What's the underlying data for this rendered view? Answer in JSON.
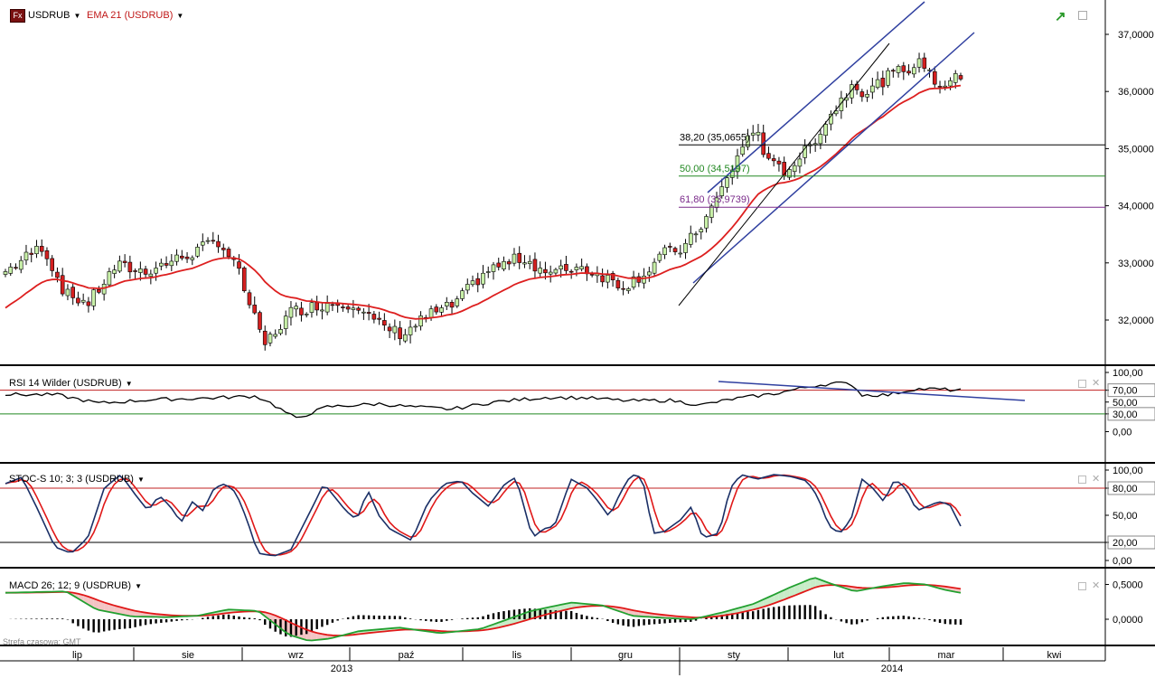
{
  "colors": {
    "bull": "#c8f0a8",
    "bear": "#d42020",
    "ema": "#dd1f1f",
    "channel": "#3040a0",
    "fib382": "#000000",
    "fib500": "#228822",
    "fib618": "#7a2a8a",
    "rsi": "#000000",
    "stoch_k": "#1a2f66",
    "stoch_d": "#e01818",
    "macd_line": "#22a030",
    "macd_signal": "#e01818",
    "level_red": "#c02020",
    "level_green": "#228822"
  },
  "main_panel": {
    "symbol": "USDRUB",
    "badge": "Fx",
    "indicator": "EMA 21 (USDRUB)",
    "y_labels": [
      "37,0000",
      "36,0000",
      "35,0000",
      "34,0000",
      "33,0000",
      "32,0000"
    ],
    "fib_382": "38,20 (35,0655)",
    "fib_500": "50,00 (34,5197)",
    "fib_618": "61,80 (33,9739)"
  },
  "rsi_panel": {
    "title": "RSI 14 Wilder (USDRUB)",
    "y_labels": [
      "100,00",
      "70,00",
      "50,00",
      "30,00",
      "0,00"
    ]
  },
  "stoch_panel": {
    "title": "STOC-S 10; 3; 3 (USDRUB)",
    "y_labels": [
      "100,00",
      "80,00",
      "50,00",
      "20,00",
      "0,00"
    ]
  },
  "macd_panel": {
    "title": "MACD 26; 12; 9 (USDRUB)",
    "y_labels": [
      "0,5000",
      "0,0000"
    ]
  },
  "footer": {
    "timezone": "Strefa czasowa: GMT",
    "months": [
      "lip",
      "sie",
      "wrz",
      "paź",
      "lis",
      "gru",
      "sty",
      "lut",
      "mar",
      "kwi"
    ],
    "years": [
      "2013",
      "2014"
    ]
  },
  "chart_data": [
    {
      "type": "candlestick",
      "title": "USDRUB",
      "series_name": "EMA 21 (USDRUB)",
      "x_start": "2013-07",
      "x_end": "2014-03",
      "ylim": [
        31.3,
        37.4
      ],
      "keypoints_close": [
        [
          "early Jul 2013",
          32.85
        ],
        [
          "mid Jul 2013",
          33.3
        ],
        [
          "late Jul 2013",
          32.3
        ],
        [
          "early Aug 2013",
          32.9
        ],
        [
          "mid Aug 2013",
          32.85
        ],
        [
          "late Aug 2013",
          33.4
        ],
        [
          "early Sep 2013",
          31.55
        ],
        [
          "mid Sep 2013",
          32.1
        ],
        [
          "late Sep 2013",
          32.3
        ],
        [
          "early Oct 2013",
          32.3
        ],
        [
          "mid Oct 2013",
          31.75
        ],
        [
          "late Oct 2013",
          32.2
        ],
        [
          "early Nov 2013",
          32.85
        ],
        [
          "mid Nov 2013",
          33.1
        ],
        [
          "late Nov 2013",
          32.8
        ],
        [
          "mid Dec 2013",
          32.6
        ],
        [
          "end Dec 2013",
          32.85
        ],
        [
          "mid Jan 2014",
          33.8
        ],
        [
          "late Jan 2014",
          35.4
        ],
        [
          "early Feb 2014",
          34.7
        ],
        [
          "mid Feb 2014",
          35.5
        ],
        [
          "early Mar 2014",
          36.2
        ],
        [
          "mid Mar 2014",
          36.5
        ],
        [
          "late Mar 2014",
          36.2
        ]
      ],
      "fibonacci": [
        {
          "level": "38,20",
          "value": 35.0655
        },
        {
          "level": "50,00",
          "value": 34.5197
        },
        {
          "level": "61,80",
          "value": 33.9739
        }
      ]
    },
    {
      "type": "line",
      "title": "RSI 14 Wilder (USDRUB)",
      "ylim": [
        0,
        100
      ],
      "levels": [
        70,
        30
      ]
    },
    {
      "type": "line",
      "title": "STOC-S 10; 3; 3 (USDRUB)",
      "ylim": [
        0,
        100
      ],
      "levels": [
        80,
        20
      ]
    },
    {
      "type": "line",
      "title": "MACD 26; 12; 9 (USDRUB)",
      "ylim": [
        -0.35,
        0.65
      ]
    }
  ]
}
